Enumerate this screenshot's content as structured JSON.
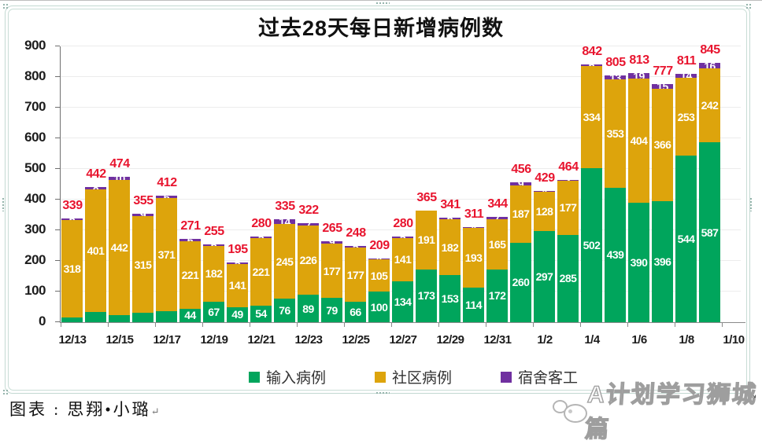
{
  "title": "过去28天每日新增病例数",
  "legend": [
    {
      "label": "输入病例",
      "color": "#00a55c"
    },
    {
      "label": "社区病例",
      "color": "#dda40c"
    },
    {
      "label": "宿舍客工",
      "color": "#7030a0"
    }
  ],
  "footer": {
    "credit": "图表 : 思翔•小璐",
    "paragraph_mark": "↵"
  },
  "watermark": {
    "text": "A计划学习狮城篇"
  },
  "colors": {
    "imported_green": "#00a55c",
    "community_yellow": "#dda40c",
    "dormitory_purple": "#7030a0",
    "total_label_red": "#e8142e",
    "axis_text": "#1c1c1c",
    "gridline": "#ececec"
  },
  "chart_data": {
    "type": "bar",
    "stacked": true,
    "title": "过去28天每日新增病例数",
    "ylim": [
      0,
      900
    ],
    "ytick_step": 100,
    "grid": true,
    "legend_position": "bottom",
    "categories": [
      "12/13",
      "12/14",
      "12/15",
      "12/16",
      "12/17",
      "12/18",
      "12/19",
      "12/20",
      "12/21",
      "12/22",
      "12/23",
      "12/24",
      "12/25",
      "12/26",
      "12/27",
      "12/28",
      "12/29",
      "12/30",
      "12/31",
      "1/1",
      "1/2",
      "1/3",
      "1/4",
      "1/5",
      "1/6",
      "1/7",
      "1/8",
      "1/9"
    ],
    "x_axis_labels": [
      "12/13",
      "12/15",
      "12/17",
      "12/19",
      "12/21",
      "12/23",
      "12/25",
      "12/27",
      "12/29",
      "12/31",
      "1/2",
      "1/4",
      "1/6",
      "1/8",
      "1/10"
    ],
    "series": [
      {
        "key": "imported",
        "name": "输入病例",
        "color": "#00a55c",
        "values": [
          15,
          33,
          22,
          31,
          35,
          44,
          67,
          49,
          54,
          76,
          89,
          79,
          66,
          100,
          134,
          173,
          153,
          114,
          172,
          260,
          297,
          285,
          502,
          439,
          390,
          396,
          544,
          587
        ]
      },
      {
        "key": "community",
        "name": "社区病例",
        "color": "#dda40c",
        "values": [
          318,
          401,
          442,
          315,
          371,
          221,
          182,
          141,
          221,
          245,
          226,
          177,
          177,
          105,
          141,
          191,
          182,
          193,
          165,
          187,
          128,
          177,
          334,
          353,
          404,
          366,
          253,
          242
        ]
      },
      {
        "key": "dormitory",
        "name": "宿舍客工",
        "color": "#7030a0",
        "values": [
          6,
          8,
          10,
          9,
          6,
          6,
          6,
          5,
          5,
          14,
          7,
          9,
          5,
          4,
          5,
          1,
          6,
          4,
          7,
          9,
          4,
          2,
          6,
          13,
          19,
          15,
          14,
          16
        ]
      }
    ],
    "totals": [
      339,
      442,
      474,
      355,
      412,
      271,
      255,
      195,
      280,
      335,
      322,
      265,
      248,
      209,
      280,
      365,
      341,
      311,
      344,
      456,
      429,
      464,
      842,
      805,
      813,
      777,
      811,
      845
    ]
  }
}
